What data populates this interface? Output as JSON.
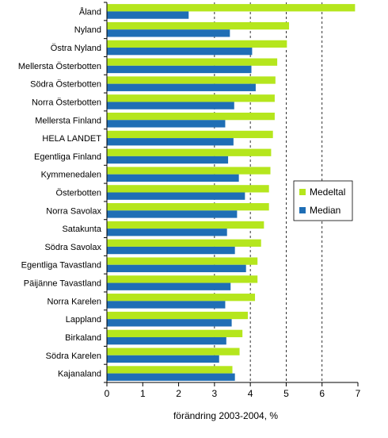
{
  "chart_data": {
    "type": "bar",
    "orientation": "horizontal",
    "title": "",
    "xlabel": "förändring 2003-2004, %",
    "ylabel": "",
    "xlim": [
      0,
      7
    ],
    "x_ticks": [
      "0",
      "1",
      "2",
      "3",
      "4",
      "5",
      "6",
      "7"
    ],
    "grid": "dashed vertical lines at 3, 4, 5, 6",
    "legend_position": "right",
    "categories": [
      "Åland",
      "Nyland",
      "Östra Nyland",
      "Mellersta Österbotten",
      "Södra Österbotten",
      "Norra Österbotten",
      "Mellersta Finland",
      "HELA LANDET",
      "Egentliga Finland",
      "Kymmenedalen",
      "Österbotten",
      "Norra Savolax",
      "Satakunta",
      "Södra Savolax",
      "Egentliga Tavastland",
      "Päijänne Tavastland",
      "Norra Karelen",
      "Lappland",
      "Birkaland",
      "Södra Karelen",
      "Kajanaland"
    ],
    "series": [
      {
        "name": "Medeltal",
        "color": "#b5e61d",
        "values": [
          6.92,
          5.08,
          5.02,
          4.75,
          4.7,
          4.68,
          4.68,
          4.63,
          4.58,
          4.56,
          4.52,
          4.52,
          4.38,
          4.3,
          4.2,
          4.2,
          4.13,
          3.93,
          3.78,
          3.7,
          3.5
        ]
      },
      {
        "name": "Median",
        "color": "#1f6eb5",
        "values": [
          2.28,
          3.43,
          4.05,
          4.03,
          4.15,
          3.55,
          3.3,
          3.53,
          3.38,
          3.68,
          3.85,
          3.63,
          3.35,
          3.57,
          3.88,
          3.45,
          3.3,
          3.48,
          3.33,
          3.13,
          3.57
        ]
      }
    ]
  }
}
